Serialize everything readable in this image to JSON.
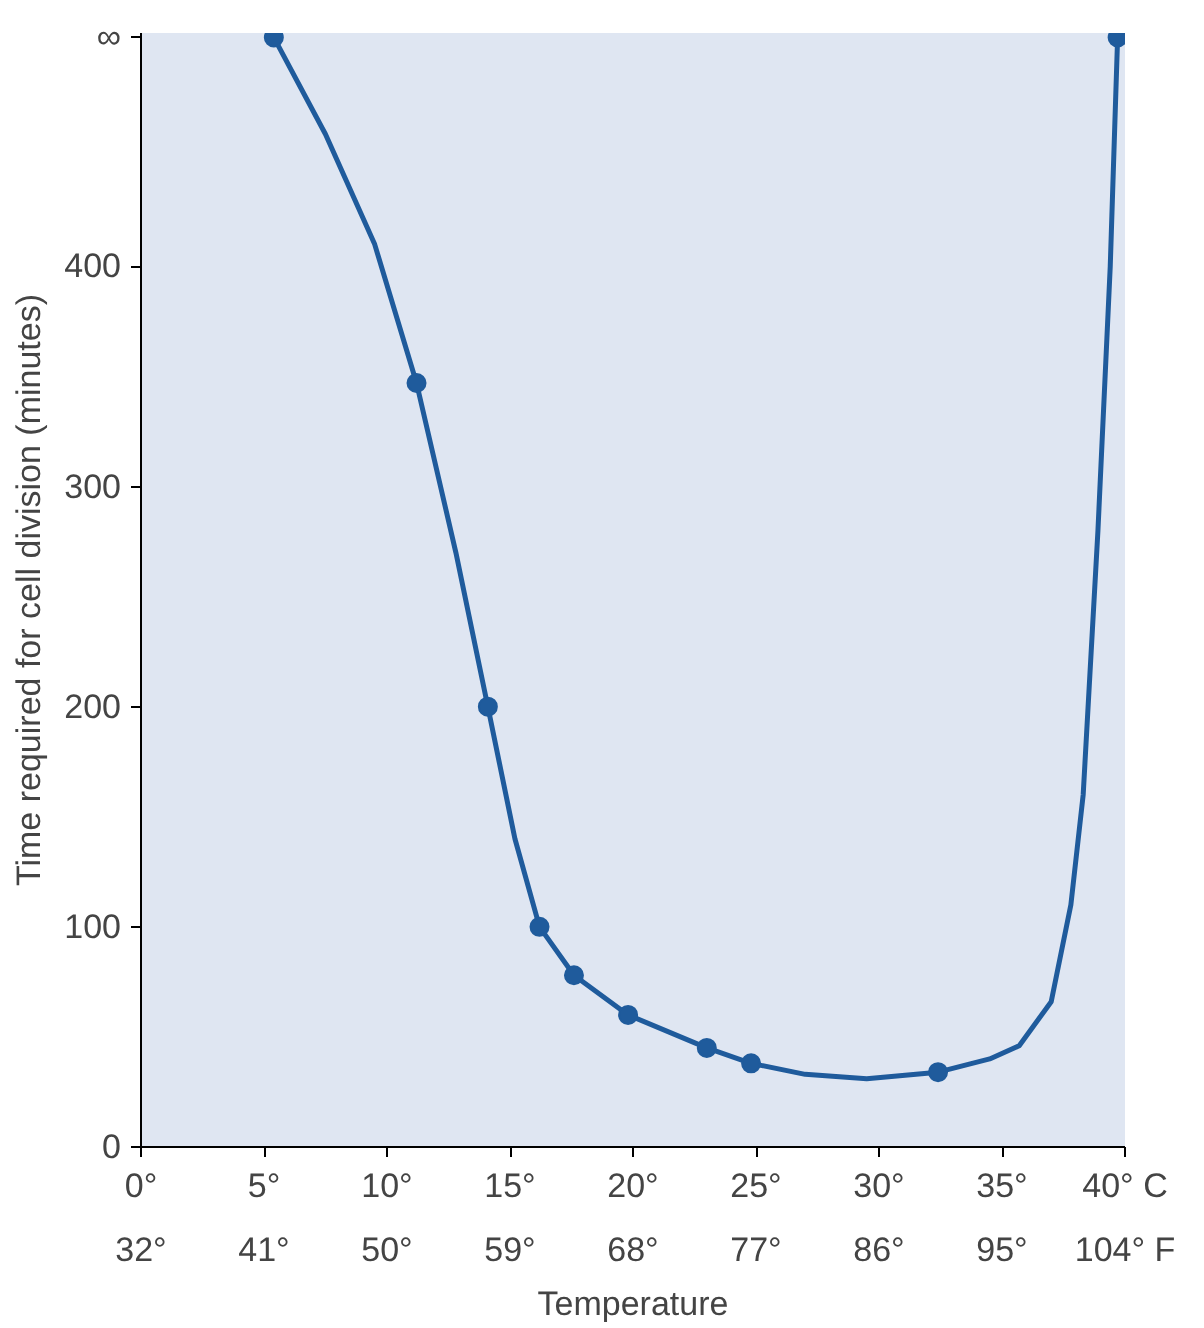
{
  "chart_data": {
    "type": "line",
    "xlabel": "Temperature",
    "ylabel": "Time required for cell division (minutes)",
    "series": [
      {
        "color": "#1f5b9c",
        "marker": "none",
        "x": [
          5.4,
          7.5,
          9.5,
          11.2,
          12.8,
          14.1,
          15.2,
          16.2,
          17.6,
          19.8,
          23.0,
          24.8,
          27.0,
          29.5,
          32.4,
          34.5,
          35.7,
          37.0,
          37.8,
          38.3,
          38.9,
          39.4,
          39.7
        ],
        "values": [
          504,
          460,
          410,
          347,
          270,
          200,
          140,
          100,
          78,
          60,
          45,
          38,
          33,
          31,
          34,
          40,
          46,
          66,
          110,
          160,
          280,
          400,
          504
        ]
      },
      {
        "type": "scatter",
        "color": "#1f5b9c",
        "marker": "circle",
        "x": [
          5.4,
          11.2,
          14.1,
          16.2,
          17.6,
          19.8,
          23.0,
          24.8,
          32.4,
          39.7
        ],
        "values": [
          504,
          347,
          200,
          100,
          78,
          60,
          45,
          38,
          34,
          504
        ]
      }
    ],
    "xlim": [
      0,
      40
    ],
    "ylim": [
      0,
      506
    ],
    "xticks": [
      {
        "value": 0,
        "label": "0°"
      },
      {
        "value": 5,
        "label": "5°"
      },
      {
        "value": 10,
        "label": "10°"
      },
      {
        "value": 15,
        "label": "15°"
      },
      {
        "value": 20,
        "label": "20°"
      },
      {
        "value": 25,
        "label": "25°"
      },
      {
        "value": 30,
        "label": "30°"
      },
      {
        "value": 35,
        "label": "35°"
      },
      {
        "value": 40,
        "label": "40° C"
      }
    ],
    "x2lim": [
      32,
      104
    ],
    "x2ticks": [
      {
        "value": 32,
        "label": "32°"
      },
      {
        "value": 41,
        "label": "41°"
      },
      {
        "value": 50,
        "label": "50°"
      },
      {
        "value": 59,
        "label": "59°"
      },
      {
        "value": 68,
        "label": "68°"
      },
      {
        "value": 77,
        "label": "77°"
      },
      {
        "value": 86,
        "label": "86°"
      },
      {
        "value": 95,
        "label": "95°"
      },
      {
        "value": 104,
        "label": "104° F"
      }
    ],
    "yticks": [
      0,
      100,
      200,
      300,
      400,
      {
        "value": 504,
        "label": "∞"
      }
    ],
    "grid": false
  }
}
